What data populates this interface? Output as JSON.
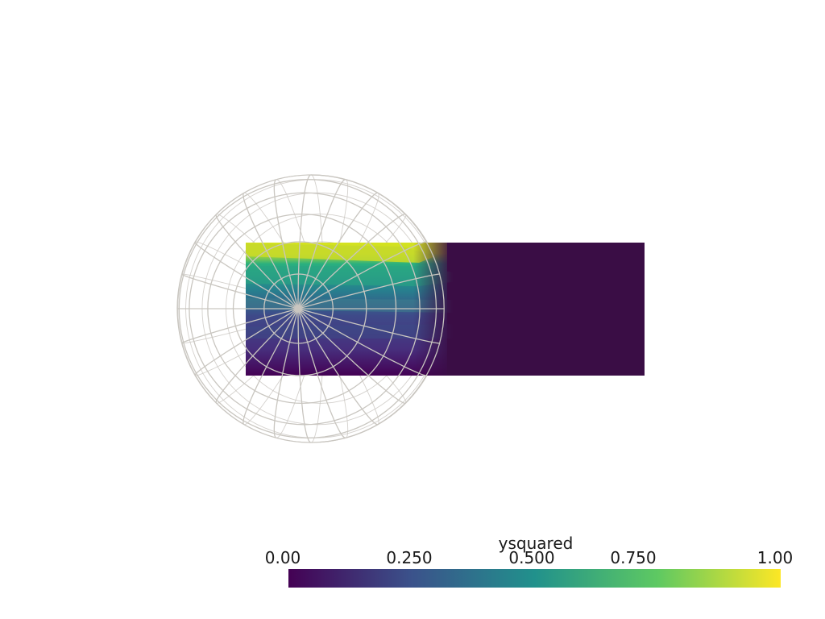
{
  "scalar_bar": {
    "title": "ysquared",
    "ticks": [
      "0.00",
      "0.250",
      "0.500",
      "0.750",
      "1.00"
    ],
    "colormap": [
      "#440154",
      "#3b528b",
      "#21918c",
      "#5ec962",
      "#fde725"
    ]
  },
  "scene": {
    "background": "#ffffff",
    "plane_base_color": "#3a0d45",
    "wireframe_color": "#c9c6c0"
  }
}
